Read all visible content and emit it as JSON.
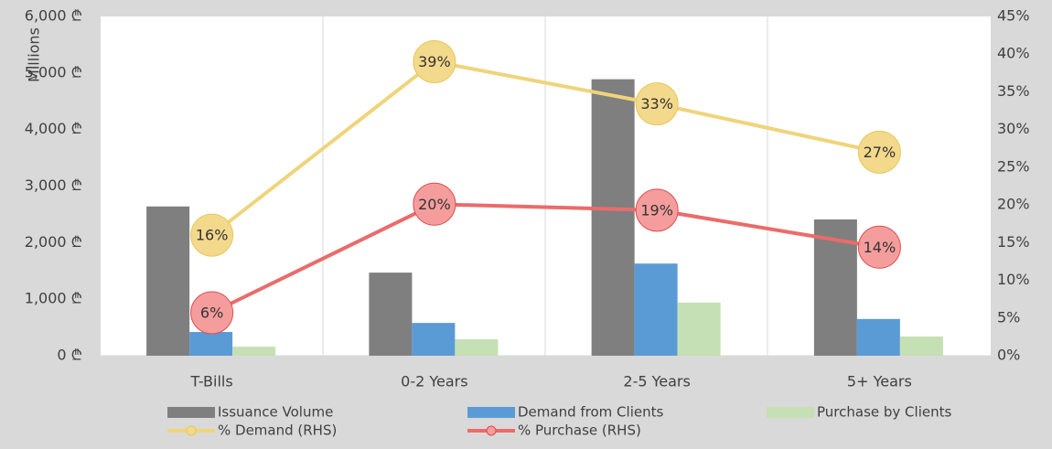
{
  "chart_data": {
    "type": "bar_line",
    "y_label": "Millions",
    "categories": [
      "T-Bills",
      "0-2 Years",
      "2-5 Years",
      "5+ Years"
    ],
    "series": [
      {
        "name": "Issuance Volume",
        "color": "#7f7f7f",
        "type": "bar",
        "values": [
          2640,
          1470,
          4890,
          2410
        ]
      },
      {
        "name": "Demand from Clients",
        "color": "#5b9bd5",
        "type": "bar",
        "values": [
          420,
          580,
          1630,
          650
        ]
      },
      {
        "name": "Purchase by Clients",
        "color": "#c5e0b4",
        "type": "bar",
        "values": [
          160,
          290,
          940,
          340
        ]
      },
      {
        "name": "% Demand (RHS)",
        "color": "#efd47a",
        "type": "line",
        "axis": "y2",
        "values": [
          16,
          39,
          33.4,
          27
        ],
        "value_labels": [
          "16%",
          "39%",
          "33%",
          "27%"
        ]
      },
      {
        "name": "% Purchase (RHS)",
        "color": "#eb6b6b",
        "type": "line",
        "axis": "y2",
        "values": [
          5.7,
          20.1,
          19.3,
          14.4
        ],
        "value_labels": [
          "6%",
          "20%",
          "19%",
          "14%"
        ]
      }
    ],
    "ylim": [
      0,
      6000
    ],
    "yticks": [
      {
        "value": 0,
        "label": "0 ₾"
      },
      {
        "value": 1000,
        "label": "1,000 ₾"
      },
      {
        "value": 2000,
        "label": "2,000 ₾"
      },
      {
        "value": 3000,
        "label": "3,000 ₾"
      },
      {
        "value": 4000,
        "label": "4,000 ₾"
      },
      {
        "value": 5000,
        "label": "5,000 ₾"
      },
      {
        "value": 6000,
        "label": "6,000 ₾"
      }
    ],
    "y2lim": [
      0,
      45
    ],
    "y2ticks": [
      {
        "value": 0,
        "label": "0%"
      },
      {
        "value": 5,
        "label": "5%"
      },
      {
        "value": 10,
        "label": "10%"
      },
      {
        "value": 15,
        "label": "15%"
      },
      {
        "value": 20,
        "label": "20%"
      },
      {
        "value": 25,
        "label": "25%"
      },
      {
        "value": 30,
        "label": "30%"
      },
      {
        "value": 35,
        "label": "35%"
      },
      {
        "value": 40,
        "label": "40%"
      },
      {
        "value": 45,
        "label": "45%"
      }
    ]
  }
}
